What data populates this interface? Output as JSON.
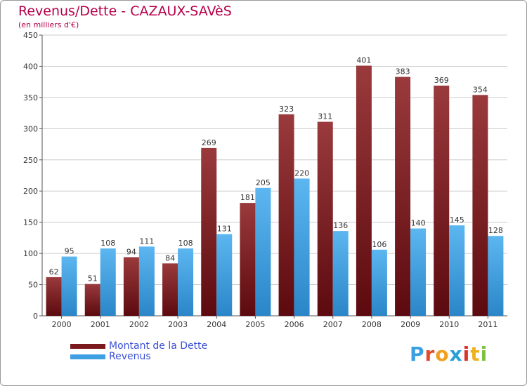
{
  "header": {
    "title": "Revenus/Dette - CAZAUX-SAVèS",
    "subtitle": "(en milliers d'€)"
  },
  "legend": {
    "items": [
      {
        "label": "Montant de la Dette",
        "color": "#7a1a1f"
      },
      {
        "label": "Revenus",
        "color": "#3f9fe3"
      }
    ]
  },
  "logo": {
    "text": "Proxiti",
    "letter_colors": [
      "#3aa0e0",
      "#e24a2a",
      "#f0a020",
      "#2a9fd6",
      "#d9342b",
      "#f0b020",
      "#7cc242"
    ]
  },
  "colors": {
    "dette_light": "#9a3a3c",
    "dette_dark": "#5c0a0f",
    "revenus_light": "#5cb6f0",
    "revenus_dark": "#2a86c8",
    "grid": "#cccccc",
    "axis_text": "#333333"
  },
  "chart_data": {
    "type": "bar",
    "categories": [
      "2000",
      "2001",
      "2002",
      "2003",
      "2004",
      "2005",
      "2006",
      "2007",
      "2008",
      "2009",
      "2010",
      "2011"
    ],
    "series": [
      {
        "name": "Montant de la Dette",
        "values": [
          62,
          51,
          94,
          84,
          269,
          181,
          323,
          311,
          401,
          383,
          369,
          354
        ]
      },
      {
        "name": "Revenus",
        "values": [
          95,
          108,
          111,
          108,
          131,
          205,
          220,
          136,
          106,
          140,
          145,
          128
        ]
      }
    ],
    "title": "Revenus/Dette - CAZAUX-SAVèS",
    "ylabel": "(en milliers d'€)",
    "ylim": [
      0,
      450
    ],
    "yticks": [
      0,
      50,
      100,
      150,
      200,
      250,
      300,
      350,
      400,
      450
    ],
    "grid": true,
    "legend_position": "bottom-left"
  }
}
